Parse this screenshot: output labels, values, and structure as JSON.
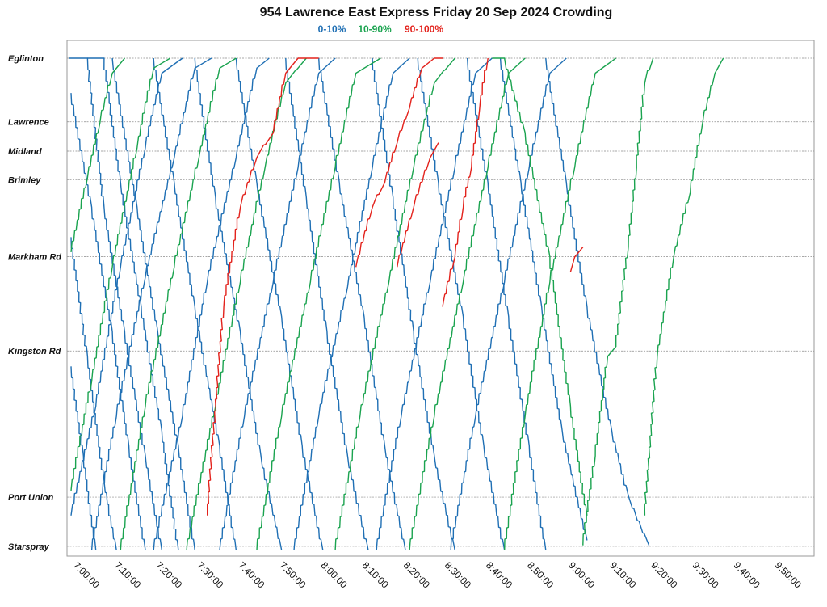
{
  "chart_data": {
    "type": "line",
    "title": "954 Lawrence East Express Friday 20 Sep 2024 Crowding",
    "legend": {
      "position": "top-center",
      "entries": [
        {
          "label": "0-10%",
          "color": "#1f6fb4"
        },
        {
          "label": "10-90%",
          "color": "#1aa34f"
        },
        {
          "label": "90-100%",
          "color": "#e3221c"
        }
      ]
    },
    "x_axis": {
      "range": [
        "7:00:00",
        "10:00:00"
      ],
      "tick_labels": [
        "7:00:00",
        "7:10:00",
        "7:20:00",
        "7:30:00",
        "7:40:00",
        "7:50:00",
        "8:00:00",
        "8:10:00",
        "8:20:00",
        "8:30:00",
        "8:40:00",
        "8:50:00",
        "9:00:00",
        "9:10:00",
        "9:20:00",
        "9:30:00",
        "9:40:00",
        "9:50:00"
      ]
    },
    "y_axis": {
      "stops": [
        {
          "name": "Eglinton",
          "pos": 0.0
        },
        {
          "name": "Lawrence",
          "pos": 0.128
        },
        {
          "name": "Midland",
          "pos": 0.187
        },
        {
          "name": "Brimley",
          "pos": 0.245
        },
        {
          "name": "Markham Rd",
          "pos": 0.399
        },
        {
          "name": "Kingston Rd",
          "pos": 0.589
        },
        {
          "name": "Port Union",
          "pos": 0.883
        },
        {
          "name": "Starspray",
          "pos": 0.982
        }
      ],
      "grid": true
    },
    "series": [
      {
        "color": "#1f6fb4",
        "points": [
          [
            "6:59:30",
            0.0
          ],
          [
            "7:04",
            0.0
          ],
          [
            "7:08",
            0.3
          ],
          [
            "7:13",
            0.55
          ],
          [
            "7:18",
            0.8
          ],
          [
            "7:22",
            0.99
          ]
        ]
      },
      {
        "color": "#1f6fb4",
        "points": [
          [
            "7:04",
            0.0
          ],
          [
            "7:08",
            0.0
          ],
          [
            "7:12",
            0.25
          ],
          [
            "7:17",
            0.5
          ],
          [
            "7:22",
            0.75
          ],
          [
            "7:26",
            0.99
          ]
        ]
      },
      {
        "color": "#1f6fb4",
        "points": [
          [
            "7:10",
            0.0
          ],
          [
            "7:16",
            0.3
          ],
          [
            "7:21",
            0.55
          ],
          [
            "7:26",
            0.78
          ],
          [
            "7:30",
            0.99
          ]
        ]
      },
      {
        "color": "#1f6fb4",
        "points": [
          [
            "7:20",
            0.0
          ],
          [
            "7:25",
            0.25
          ],
          [
            "7:30",
            0.5
          ],
          [
            "7:36",
            0.78
          ],
          [
            "7:40",
            0.99
          ]
        ]
      },
      {
        "color": "#1f6fb4",
        "points": [
          [
            "7:30",
            0.0
          ],
          [
            "7:35",
            0.28
          ],
          [
            "7:41",
            0.55
          ],
          [
            "7:46",
            0.8
          ],
          [
            "7:51",
            0.99
          ]
        ]
      },
      {
        "color": "#1f6fb4",
        "points": [
          [
            "7:40",
            0.0
          ],
          [
            "7:45",
            0.25
          ],
          [
            "7:51",
            0.52
          ],
          [
            "7:56",
            0.78
          ],
          [
            "8:01",
            0.99
          ]
        ]
      },
      {
        "color": "#1f6fb4",
        "points": [
          [
            "7:52",
            0.0
          ],
          [
            "7:57",
            0.28
          ],
          [
            "8:02",
            0.55
          ],
          [
            "8:07",
            0.8
          ],
          [
            "8:12",
            0.99
          ]
        ]
      },
      {
        "color": "#1f6fb4",
        "points": [
          [
            "8:00",
            0.0
          ],
          [
            "8:05",
            0.25
          ],
          [
            "8:11",
            0.52
          ],
          [
            "8:16",
            0.78
          ],
          [
            "8:21",
            0.99
          ]
        ]
      },
      {
        "color": "#1f6fb4",
        "points": [
          [
            "8:13",
            0.0
          ],
          [
            "8:18",
            0.28
          ],
          [
            "8:23",
            0.55
          ],
          [
            "8:28",
            0.8
          ],
          [
            "8:33",
            0.99
          ]
        ]
      },
      {
        "color": "#1f6fb4",
        "points": [
          [
            "8:24",
            0.0
          ],
          [
            "8:29",
            0.25
          ],
          [
            "8:35",
            0.52
          ],
          [
            "8:40",
            0.78
          ],
          [
            "8:45",
            0.99
          ]
        ]
      },
      {
        "color": "#1f6fb4",
        "points": [
          [
            "8:36",
            0.0
          ],
          [
            "8:41",
            0.25
          ],
          [
            "8:46",
            0.52
          ],
          [
            "8:51",
            0.78
          ],
          [
            "8:55",
            0.99
          ]
        ]
      },
      {
        "color": "#1f6fb4",
        "points": [
          [
            "8:44",
            0.0
          ],
          [
            "8:49",
            0.25
          ],
          [
            "8:54",
            0.5
          ],
          [
            "8:59",
            0.75
          ],
          [
            "9:05",
            0.97
          ]
        ]
      },
      {
        "color": "#1f6fb4",
        "points": [
          [
            "8:55",
            0.0
          ],
          [
            "9:00",
            0.25
          ],
          [
            "9:05",
            0.5
          ],
          [
            "9:11",
            0.75
          ],
          [
            "9:15",
            0.88
          ],
          [
            "9:20",
            0.98
          ]
        ]
      },
      {
        "color": "#1f6fb4",
        "points": [
          [
            "7:00",
            0.07
          ],
          [
            "7:05",
            0.3
          ],
          [
            "7:10",
            0.55
          ],
          [
            "7:14",
            0.78
          ],
          [
            "7:18",
            0.99
          ]
        ]
      },
      {
        "color": "#1f6fb4",
        "points": [
          [
            "7:00",
            0.36
          ],
          [
            "7:04",
            0.6
          ],
          [
            "7:08",
            0.85
          ],
          [
            "7:11",
            0.99
          ]
        ]
      },
      {
        "color": "#1f6fb4",
        "points": [
          [
            "7:00",
            0.62
          ],
          [
            "7:03",
            0.8
          ],
          [
            "7:06",
            0.99
          ]
        ]
      },
      {
        "color": "#1aa34f",
        "points": [
          [
            "7:00",
            0.39
          ],
          [
            "7:04",
            0.24
          ],
          [
            "7:07",
            0.13
          ],
          [
            "7:10",
            0.03
          ],
          [
            "7:13",
            0.0
          ]
        ]
      },
      {
        "color": "#1aa34f",
        "points": [
          [
            "7:00",
            0.87
          ],
          [
            "7:05",
            0.65
          ],
          [
            "7:10",
            0.42
          ],
          [
            "7:16",
            0.18
          ],
          [
            "7:20",
            0.02
          ],
          [
            "7:24",
            0.0
          ]
        ]
      },
      {
        "color": "#1f6fb4",
        "points": [
          [
            "7:00",
            0.92
          ],
          [
            "7:06",
            0.7
          ],
          [
            "7:12",
            0.42
          ],
          [
            "7:18",
            0.18
          ],
          [
            "7:22",
            0.03
          ],
          [
            "7:27",
            0.0
          ]
        ]
      },
      {
        "color": "#1f6fb4",
        "points": [
          [
            "7:05",
            0.99
          ],
          [
            "7:11",
            0.72
          ],
          [
            "7:18",
            0.44
          ],
          [
            "7:25",
            0.2
          ],
          [
            "7:30",
            0.02
          ],
          [
            "7:34",
            0.0
          ]
        ]
      },
      {
        "color": "#1aa34f",
        "points": [
          [
            "7:12",
            0.99
          ],
          [
            "7:18",
            0.7
          ],
          [
            "7:25",
            0.42
          ],
          [
            "7:31",
            0.2
          ],
          [
            "7:36",
            0.02
          ],
          [
            "7:40",
            0.0
          ]
        ]
      },
      {
        "color": "#1f6fb4",
        "points": [
          [
            "7:20",
            0.99
          ],
          [
            "7:27",
            0.72
          ],
          [
            "7:33",
            0.45
          ],
          [
            "7:40",
            0.2
          ],
          [
            "7:45",
            0.02
          ],
          [
            "7:48",
            0.0
          ]
        ]
      },
      {
        "color": "#1aa34f",
        "points": [
          [
            "7:28",
            0.99
          ],
          [
            "7:35",
            0.7
          ],
          [
            "7:41",
            0.45
          ],
          [
            "7:47",
            0.22
          ],
          [
            "7:52",
            0.05
          ],
          [
            "7:57",
            0.0
          ]
        ]
      },
      {
        "color": "#1f6fb4",
        "points": [
          [
            "7:36",
            0.99
          ],
          [
            "7:42",
            0.72
          ],
          [
            "7:49",
            0.45
          ],
          [
            "7:55",
            0.22
          ],
          [
            "8:00",
            0.03
          ],
          [
            "8:04",
            0.0
          ]
        ]
      },
      {
        "color": "#1aa34f",
        "points": [
          [
            "7:45",
            0.99
          ],
          [
            "7:51",
            0.72
          ],
          [
            "7:58",
            0.45
          ],
          [
            "8:04",
            0.22
          ],
          [
            "8:09",
            0.03
          ],
          [
            "8:15",
            0.0
          ]
        ]
      },
      {
        "color": "#1f6fb4",
        "points": [
          [
            "7:54",
            0.99
          ],
          [
            "8:00",
            0.72
          ],
          [
            "8:07",
            0.46
          ],
          [
            "8:13",
            0.22
          ],
          [
            "8:18",
            0.03
          ],
          [
            "8:22",
            0.0
          ]
        ]
      },
      {
        "color": "#1aa34f",
        "points": [
          [
            "8:04",
            0.99
          ],
          [
            "8:10",
            0.72
          ],
          [
            "8:17",
            0.45
          ],
          [
            "8:23",
            0.22
          ],
          [
            "8:28",
            0.05
          ],
          [
            "8:33",
            0.0
          ]
        ]
      },
      {
        "color": "#1f6fb4",
        "points": [
          [
            "8:14",
            0.99
          ],
          [
            "8:20",
            0.72
          ],
          [
            "8:27",
            0.45
          ],
          [
            "8:33",
            0.22
          ],
          [
            "8:38",
            0.03
          ],
          [
            "8:42",
            0.0
          ]
        ]
      },
      {
        "color": "#1aa34f",
        "points": [
          [
            "8:22",
            0.99
          ],
          [
            "8:28",
            0.72
          ],
          [
            "8:35",
            0.45
          ],
          [
            "8:41",
            0.22
          ],
          [
            "8:46",
            0.03
          ],
          [
            "8:50",
            0.0
          ]
        ]
      },
      {
        "color": "#1f6fb4",
        "points": [
          [
            "8:32",
            0.99
          ],
          [
            "8:38",
            0.72
          ],
          [
            "8:45",
            0.45
          ],
          [
            "8:51",
            0.22
          ],
          [
            "8:56",
            0.03
          ],
          [
            "9:00",
            0.0
          ]
        ]
      },
      {
        "color": "#1aa34f",
        "points": [
          [
            "8:45",
            0.99
          ],
          [
            "8:50",
            0.72
          ],
          [
            "8:56",
            0.45
          ],
          [
            "9:02",
            0.22
          ],
          [
            "9:07",
            0.03
          ],
          [
            "9:12",
            0.0
          ]
        ]
      },
      {
        "color": "#1aa34f",
        "points": [
          [
            "9:04",
            0.98
          ],
          [
            "9:07",
            0.8
          ],
          [
            "9:10",
            0.6
          ],
          [
            "9:12",
            0.58
          ],
          [
            "9:15",
            0.38
          ],
          [
            "9:17",
            0.22
          ],
          [
            "9:19",
            0.05
          ],
          [
            "9:21",
            0.0
          ]
        ]
      },
      {
        "color": "#1aa34f",
        "points": [
          [
            "9:19",
            0.92
          ],
          [
            "9:22",
            0.6
          ],
          [
            "9:26",
            0.4
          ],
          [
            "9:30",
            0.27
          ],
          [
            "9:33",
            0.13
          ],
          [
            "9:36",
            0.03
          ],
          [
            "9:38",
            0.0
          ]
        ]
      },
      {
        "color": "#1aa34f",
        "points": [
          [
            "8:42",
            0.0
          ],
          [
            "8:45",
            0.0
          ],
          [
            "8:50",
            0.15
          ],
          [
            "8:56",
            0.4
          ],
          [
            "9:01",
            0.7
          ],
          [
            "9:05",
            0.92
          ]
        ]
      },
      {
        "color": "#e3221c",
        "points": [
          [
            "7:33",
            0.92
          ],
          [
            "7:37",
            0.5
          ],
          [
            "7:41",
            0.3
          ],
          [
            "7:45",
            0.2
          ],
          [
            "7:49",
            0.15
          ],
          [
            "7:52",
            0.03
          ],
          [
            "7:55",
            0.0
          ],
          [
            "8:00",
            0.0
          ]
        ]
      },
      {
        "color": "#e3221c",
        "points": [
          [
            "8:09",
            0.42
          ],
          [
            "8:13",
            0.3
          ],
          [
            "8:16",
            0.25
          ],
          [
            "8:19",
            0.17
          ],
          [
            "8:22",
            0.1
          ],
          [
            "8:25",
            0.02
          ],
          [
            "8:28",
            0.0
          ],
          [
            "8:30",
            0.0
          ]
        ]
      },
      {
        "color": "#e3221c",
        "points": [
          [
            "8:30",
            0.5
          ],
          [
            "8:33",
            0.4
          ],
          [
            "8:35",
            0.3
          ],
          [
            "8:37",
            0.22
          ],
          [
            "8:39",
            0.1
          ],
          [
            "8:41",
            0.0
          ]
        ]
      },
      {
        "color": "#e3221c",
        "points": [
          [
            "8:19",
            0.42
          ],
          [
            "8:23",
            0.3
          ],
          [
            "8:27",
            0.2
          ],
          [
            "8:29",
            0.17
          ]
        ]
      },
      {
        "color": "#e3221c",
        "points": [
          [
            "9:01",
            0.43
          ],
          [
            "9:02",
            0.4
          ],
          [
            "9:04",
            0.38
          ]
        ]
      }
    ]
  }
}
